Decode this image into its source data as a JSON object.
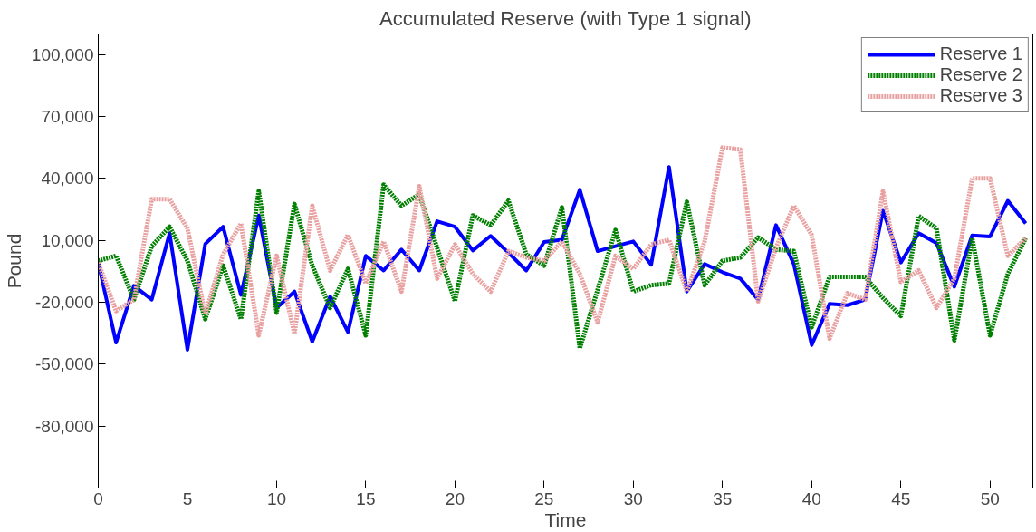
{
  "chart_data": {
    "type": "line",
    "title": "Accumulated Reserve (with Type 1 signal)",
    "xlabel": "Time",
    "ylabel": "Pound",
    "x": [
      0,
      1,
      2,
      3,
      4,
      5,
      6,
      7,
      8,
      9,
      10,
      11,
      12,
      13,
      14,
      15,
      16,
      17,
      18,
      19,
      20,
      21,
      22,
      23,
      24,
      25,
      26,
      27,
      28,
      29,
      30,
      31,
      32,
      33,
      34,
      35,
      36,
      37,
      38,
      39,
      40,
      41,
      42,
      43,
      44,
      45,
      46,
      47,
      48,
      49,
      50,
      51,
      52
    ],
    "series": [
      {
        "name": "Reserve 1",
        "color": "#0000ff",
        "line_style": "solid",
        "values": [
          -700,
          -39500,
          -12000,
          -18700,
          13500,
          -43000,
          8300,
          16600,
          -16400,
          22100,
          -22700,
          -14800,
          -39100,
          -17200,
          -34400,
          2500,
          -4600,
          5600,
          -4600,
          19300,
          16600,
          5100,
          12200,
          4000,
          -4600,
          9200,
          10300,
          34600,
          4800,
          7200,
          9500,
          -1800,
          45600,
          -14800,
          -1500,
          -5400,
          -8500,
          -18700,
          17400,
          -1500,
          -40700,
          -20800,
          -21400,
          -18700,
          24400,
          -700,
          13500,
          8700,
          -12500,
          12400,
          11900,
          29200,
          18200
        ]
      },
      {
        "name": "Reserve 2",
        "color": "#007f00",
        "line_style": "dotted",
        "values": [
          100,
          2500,
          -18700,
          7200,
          16600,
          100,
          -28200,
          -2200,
          -28200,
          33900,
          -25000,
          27600,
          -2200,
          -22700,
          -3800,
          -36000,
          37000,
          26800,
          32300,
          6400,
          -19500,
          22100,
          17400,
          29200,
          3200,
          -2200,
          26000,
          -42300,
          -14000,
          15000,
          -14800,
          -11700,
          -10900,
          28700,
          -11700,
          100,
          1700,
          11400,
          5600,
          4800,
          -32100,
          -7700,
          -7700,
          -7700,
          -17900,
          -26600,
          21800,
          15800,
          -38400,
          11100,
          -36000,
          -6200,
          11100
        ]
      },
      {
        "name": "Reserve 3",
        "color": "#e8a0a0",
        "line_style": "dotted",
        "values": [
          -700,
          -24200,
          -18700,
          30000,
          30000,
          15800,
          -25800,
          3200,
          18200,
          -36000,
          2500,
          -35200,
          26800,
          -4600,
          12700,
          -10900,
          9500,
          -14800,
          36200,
          -8500,
          8000,
          -6200,
          -14800,
          4800,
          1700,
          100,
          9500,
          -6200,
          -29700,
          2500,
          -3800,
          8000,
          10300,
          -14800,
          9500,
          55000,
          54000,
          -19500,
          6400,
          26800,
          12700,
          -37600,
          -15600,
          -18700,
          33900,
          -10100,
          -4600,
          -22700,
          -8500,
          40100,
          40100,
          2500,
          11100
        ]
      }
    ],
    "xlim": [
      0,
      52.4
    ],
    "xticks": [
      0,
      5,
      10,
      15,
      20,
      25,
      30,
      35,
      40,
      45,
      50
    ],
    "ylim": [
      -110000,
      110000
    ],
    "yticks": [
      {
        "value": -80000,
        "label": "-80,000"
      },
      {
        "value": -50000,
        "label": "-50,000"
      },
      {
        "value": -20000,
        "label": "-20,000"
      },
      {
        "value": 10000,
        "label": "10,000"
      },
      {
        "value": 40000,
        "label": "40,000"
      },
      {
        "value": 70000,
        "label": "70,000"
      },
      {
        "value": 100000,
        "label": "100,000"
      }
    ],
    "grid": false,
    "legend": "top right"
  }
}
